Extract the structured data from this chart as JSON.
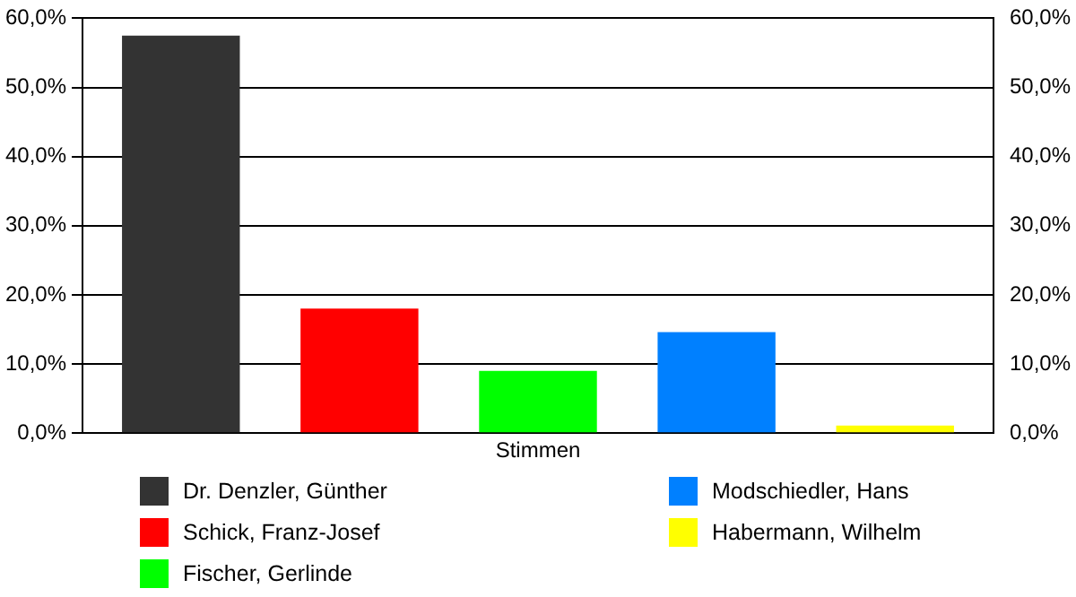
{
  "chart_data": {
    "type": "bar",
    "categories": [
      "Stimmen"
    ],
    "series": [
      {
        "name": "Dr. Denzler, Günther",
        "color": "#333333",
        "values": [
          57.5
        ]
      },
      {
        "name": "Schick, Franz-Josef",
        "color": "#ff0000",
        "values": [
          18.0
        ]
      },
      {
        "name": "Fischer, Gerlinde",
        "color": "#00ff00",
        "values": [
          9.0
        ]
      },
      {
        "name": "Modschiedler, Hans",
        "color": "#0080ff",
        "values": [
          14.6
        ]
      },
      {
        "name": "Habermann, Wilhelm",
        "color": "#ffff00",
        "values": [
          1.1
        ]
      }
    ],
    "ylim": [
      0,
      60
    ],
    "yticks": [
      {
        "value": 0,
        "label": "0,0%"
      },
      {
        "value": 10,
        "label": "10,0%"
      },
      {
        "value": 20,
        "label": "20,0%"
      },
      {
        "value": 30,
        "label": "30,0%"
      },
      {
        "value": 40,
        "label": "40,0%"
      },
      {
        "value": 50,
        "label": "50,0%"
      },
      {
        "value": 60,
        "label": "60,0%"
      }
    ],
    "grid": "y",
    "legend": "bottom"
  }
}
